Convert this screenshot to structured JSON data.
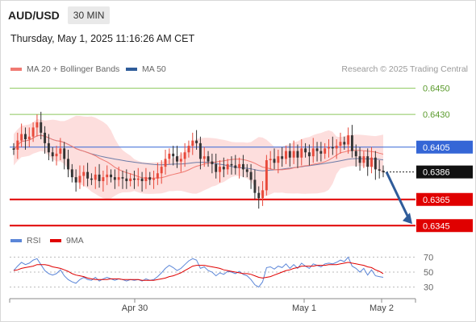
{
  "header": {
    "pair": "AUD/USD",
    "timeframe": "30 MIN"
  },
  "datetime": "Thursday, May 1, 2025 11:16:26 AM CET",
  "credit": "Research © 2025 Trading Central",
  "colors": {
    "up": "#e8493a",
    "down": "#333333",
    "band_fill": "#fddedd",
    "ma20": "#f07a72",
    "ma50": "#6d7ca8",
    "support": "#e00000",
    "resistance": "#8cc85c",
    "pivot": "#3566d6",
    "arrow": "#2f5c9a",
    "rsi": "#5b86d8",
    "rsi_ma": "#e00000"
  },
  "chart_data": [
    {
      "type": "candlestick",
      "title": "AUD/USD 30 MIN",
      "legend": [
        {
          "name": "MA 20 + Bollinger Bands",
          "color": "#f07a72"
        },
        {
          "name": "MA 50",
          "color": "#2f5c9a"
        }
      ],
      "legend_placement": "top-left",
      "ylim": [
        0.6339,
        0.6459
      ],
      "x_ticks": [
        "Apr 30",
        "May 1",
        "May 2"
      ],
      "last_price": "0.6386",
      "levels": [
        {
          "value": 0.645,
          "label": "0.6450",
          "kind": "resistance"
        },
        {
          "value": 0.643,
          "label": "0.6430",
          "kind": "resistance"
        },
        {
          "value": 0.6405,
          "label": "0.6405",
          "kind": "pivot"
        },
        {
          "value": 0.6365,
          "label": "0.6365",
          "kind": "support"
        },
        {
          "value": 0.6345,
          "label": "0.6345",
          "kind": "support"
        }
      ],
      "close": [
        0.6403,
        0.641,
        0.6415,
        0.6411,
        0.6413,
        0.642,
        0.6424,
        0.6416,
        0.6408,
        0.6401,
        0.6398,
        0.64,
        0.6404,
        0.6396,
        0.6388,
        0.6382,
        0.6378,
        0.6383,
        0.6386,
        0.6381,
        0.638,
        0.6384,
        0.6379,
        0.6382,
        0.6384,
        0.6382,
        0.638,
        0.6382,
        0.6381,
        0.6379,
        0.6381,
        0.638,
        0.6381,
        0.6379,
        0.6382,
        0.638,
        0.6381,
        0.6385,
        0.639,
        0.6396,
        0.64,
        0.6398,
        0.6394,
        0.6396,
        0.6401,
        0.6406,
        0.641,
        0.6408,
        0.6396,
        0.6398,
        0.6394,
        0.6392,
        0.6386,
        0.639,
        0.6388,
        0.6392,
        0.6391,
        0.6389,
        0.6392,
        0.6388,
        0.6386,
        0.638,
        0.637,
        0.6366,
        0.6372,
        0.6395,
        0.6396,
        0.6393,
        0.6398,
        0.6396,
        0.6402,
        0.6397,
        0.6402,
        0.6397,
        0.6404,
        0.6401,
        0.6398,
        0.6404,
        0.6402,
        0.64,
        0.6404,
        0.6405,
        0.6404,
        0.6406,
        0.6409,
        0.6407,
        0.6414,
        0.6402,
        0.6398,
        0.6393,
        0.6398,
        0.639,
        0.6397,
        0.6388,
        0.6387,
        0.6386
      ],
      "open": [
        0.6404,
        0.6403,
        0.641,
        0.6415,
        0.6411,
        0.6413,
        0.642,
        0.6424,
        0.6416,
        0.6408,
        0.6401,
        0.6398,
        0.64,
        0.6404,
        0.6396,
        0.6388,
        0.6382,
        0.6378,
        0.6383,
        0.6386,
        0.6381,
        0.638,
        0.6384,
        0.6379,
        0.6382,
        0.6384,
        0.6382,
        0.638,
        0.6382,
        0.6381,
        0.6379,
        0.6381,
        0.638,
        0.6381,
        0.6379,
        0.6382,
        0.638,
        0.6381,
        0.6385,
        0.639,
        0.6396,
        0.64,
        0.6398,
        0.6394,
        0.6396,
        0.6401,
        0.6406,
        0.641,
        0.6408,
        0.6396,
        0.6398,
        0.6394,
        0.6392,
        0.6386,
        0.639,
        0.6388,
        0.6392,
        0.6391,
        0.6389,
        0.6392,
        0.6388,
        0.6386,
        0.638,
        0.637,
        0.6366,
        0.6372,
        0.6395,
        0.6396,
        0.6393,
        0.6398,
        0.6396,
        0.6402,
        0.6397,
        0.6402,
        0.6397,
        0.6404,
        0.6401,
        0.6398,
        0.6404,
        0.6402,
        0.64,
        0.6404,
        0.6405,
        0.6404,
        0.6406,
        0.6409,
        0.6407,
        0.6414,
        0.6402,
        0.6398,
        0.6393,
        0.6398,
        0.639,
        0.6397,
        0.6388,
        0.6387
      ]
    },
    {
      "type": "line",
      "legend": [
        {
          "name": "RSI",
          "color": "#5b86d8"
        },
        {
          "name": "9MA",
          "color": "#e00000"
        }
      ],
      "ylim": [
        22,
        78
      ],
      "y_ticks": [
        "70",
        "50",
        "30"
      ],
      "series": [
        {
          "name": "RSI",
          "values": [
            52,
            58,
            63,
            60,
            62,
            66,
            68,
            60,
            52,
            48,
            46,
            48,
            53,
            45,
            40,
            37,
            35,
            40,
            43,
            40,
            39,
            43,
            38,
            41,
            43,
            41,
            39,
            41,
            40,
            38,
            40,
            39,
            40,
            38,
            41,
            39,
            40,
            44,
            49,
            55,
            59,
            56,
            52,
            55,
            60,
            65,
            68,
            66,
            55,
            57,
            52,
            50,
            45,
            49,
            47,
            51,
            50,
            48,
            51,
            47,
            45,
            40,
            33,
            30,
            37,
            56,
            57,
            54,
            58,
            56,
            61,
            55,
            60,
            55,
            62,
            58,
            55,
            61,
            59,
            57,
            61,
            62,
            61,
            63,
            66,
            64,
            70,
            58,
            55,
            50,
            55,
            46,
            53,
            45,
            44,
            43
          ]
        },
        {
          "name": "9MA",
          "values": [
            52,
            53,
            55,
            56,
            57,
            58,
            60,
            60,
            60,
            59,
            57,
            56,
            55,
            53,
            51,
            48,
            46,
            45,
            44,
            42,
            41,
            40,
            40,
            40,
            40,
            41,
            41,
            41,
            40,
            40,
            40,
            40,
            40,
            39,
            39,
            39,
            39,
            40,
            41,
            42,
            44,
            45,
            47,
            49,
            52,
            55,
            58,
            59,
            59,
            59,
            58,
            57,
            56,
            55,
            53,
            52,
            51,
            50,
            49,
            48,
            48,
            47,
            45,
            43,
            42,
            43,
            44,
            46,
            48,
            50,
            52,
            53,
            55,
            56,
            58,
            58,
            58,
            58,
            59,
            59,
            59,
            60,
            60,
            60,
            61,
            62,
            63,
            62,
            61,
            60,
            59,
            57,
            56,
            53,
            51,
            48
          ]
        }
      ]
    }
  ]
}
